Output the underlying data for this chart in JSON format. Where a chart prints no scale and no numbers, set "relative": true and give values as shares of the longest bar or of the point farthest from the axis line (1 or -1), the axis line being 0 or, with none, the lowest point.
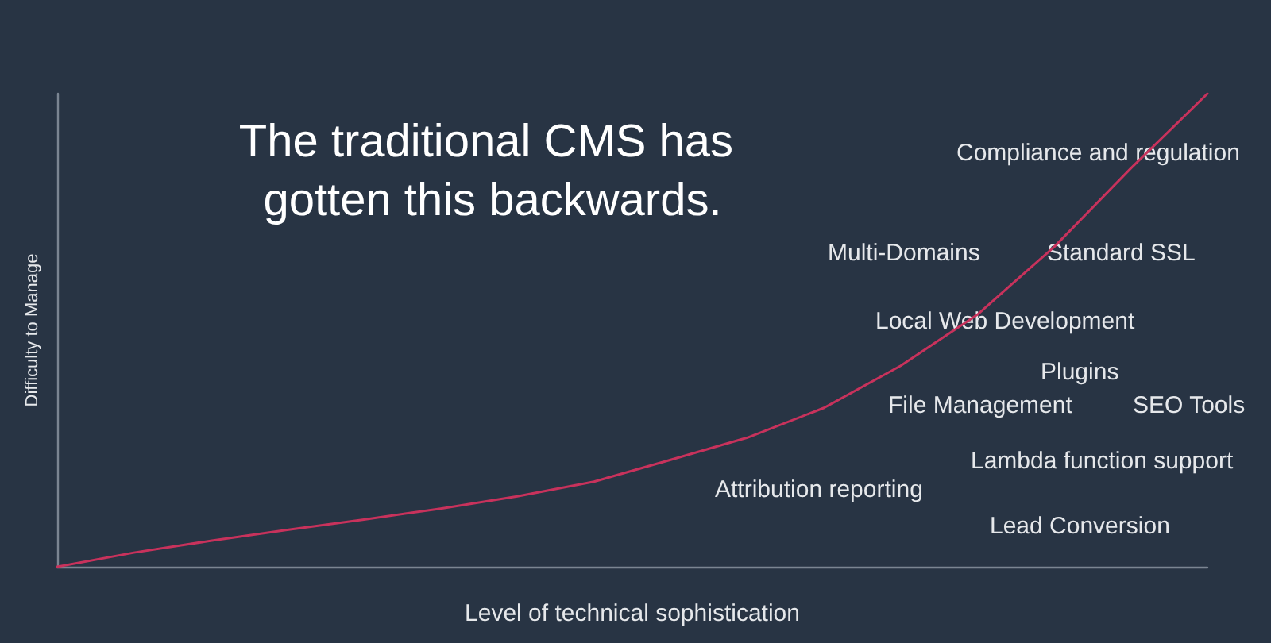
{
  "chart_data": {
    "type": "line",
    "title": "The traditional CMS has gotten this backwards.",
    "xlabel": "Level of technical sophistication",
    "ylabel": "Difficulty to Manage",
    "categories": [
      null,
      null,
      null,
      null,
      null,
      null,
      null,
      null,
      null,
      null,
      null,
      null,
      null,
      null,
      null,
      null
    ],
    "series": [
      {
        "color": "#c8325c",
        "values": [
          0,
          0.03,
          0.055,
          0.078,
          0.1,
          0.123,
          0.149,
          0.18,
          0.226,
          0.273,
          0.336,
          0.425,
          0.533,
          0.676,
          0.842,
          1
        ]
      }
    ],
    "relative": true,
    "marker": "none",
    "line_style": "solid",
    "annotations": [
      "Compliance and regulation",
      "Multi-Domains",
      "Standard SSL",
      "Local Web Development",
      "Plugins",
      "File Management",
      "SEO Tools",
      "Lambda function support",
      "Attribution reporting",
      "Lead Conversion"
    ]
  }
}
